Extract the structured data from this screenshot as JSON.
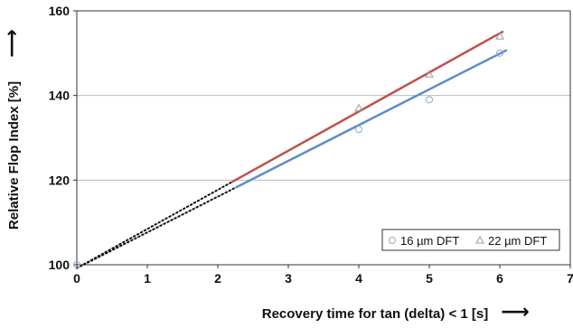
{
  "chart_data": {
    "type": "scatter",
    "xlabel": "Recovery time for tan (delta) < 1 [s]",
    "ylabel": "Relative Flop Index [%]",
    "xlim": [
      0,
      7
    ],
    "ylim": [
      100,
      160
    ],
    "x_ticks": [
      "0",
      "1",
      "2",
      "3",
      "4",
      "5",
      "6",
      "7"
    ],
    "y_ticks": [
      "100",
      "120",
      "140",
      "160"
    ],
    "grid": "horizontal",
    "legend_position": "bottom-right",
    "axis_arrow_x": "⟶",
    "axis_arrow_y": "⟶",
    "series": [
      {
        "name": "16 µm DFT",
        "marker": "circle",
        "color": "#5b8ec9",
        "points": [
          {
            "x": 0,
            "y": 100
          },
          {
            "x": 4,
            "y": 132
          },
          {
            "x": 5,
            "y": 139
          },
          {
            "x": 6,
            "y": 150
          }
        ],
        "fit": {
          "x_start": 0,
          "x_solid_start": 2.25,
          "x_end": 6.1,
          "y_start": 99.2,
          "slope": 8.45
        }
      },
      {
        "name": "22 µm DFT",
        "marker": "triangle",
        "color": "#c0504d",
        "points": [
          {
            "x": 4,
            "y": 137
          },
          {
            "x": 5,
            "y": 145
          },
          {
            "x": 6,
            "y": 154
          }
        ],
        "fit": {
          "x_start": 0,
          "x_solid_start": 2.2,
          "x_end": 6.05,
          "y_start": 99.2,
          "slope": 9.25
        }
      }
    ]
  }
}
